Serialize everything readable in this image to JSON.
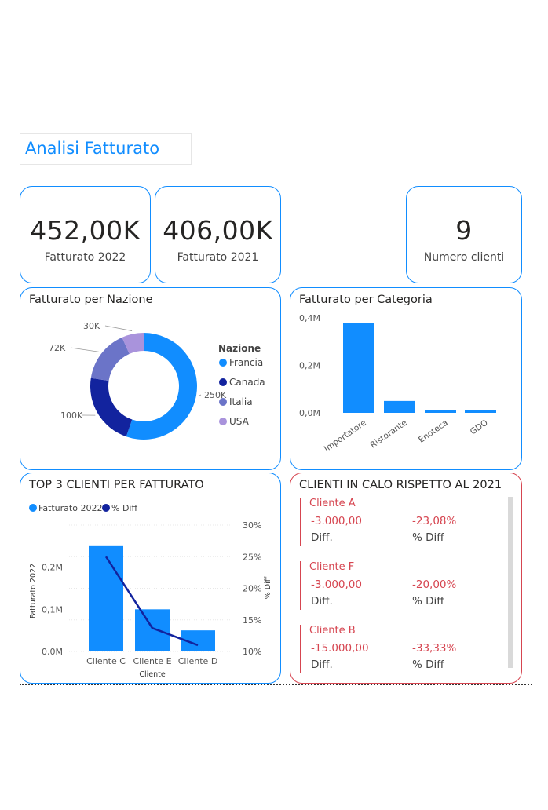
{
  "report": {
    "title": "Analisi Fatturato"
  },
  "kpis": [
    {
      "value": "452,00K",
      "label": "Fatturato 2022"
    },
    {
      "value": "406,00K",
      "label": "Fatturato 2021"
    },
    {
      "value": "9",
      "label": "Numero clienti"
    }
  ],
  "donut": {
    "title": "Fatturato per Nazione",
    "legend_title": "Nazione",
    "chart_data": {
      "type": "pie",
      "categories": [
        "Francia",
        "Canada",
        "Italia",
        "USA"
      ],
      "values": [
        250,
        100,
        72,
        30
      ],
      "data_labels": [
        "250K",
        "100K",
        "72K",
        "30K"
      ],
      "colors": [
        "#118dff",
        "#12239e",
        "#6b74c8",
        "#a993dc"
      ],
      "legend_position": "right"
    }
  },
  "category_chart": {
    "title": "Fatturato per Categoria",
    "chart_data": {
      "type": "bar",
      "categories": [
        "Importatore",
        "Ristorante",
        "Enoteca",
        "GDO"
      ],
      "values": [
        0.38,
        0.05,
        0.012,
        0.01
      ],
      "y_ticks": [
        "0,0M",
        "0,2M",
        "0,4M"
      ],
      "ylim": [
        0,
        0.4
      ],
      "color": "#118dff"
    }
  },
  "top3": {
    "title": "TOP 3 CLIENTI PER FATTURATO",
    "chart_data": {
      "type": "bar",
      "categories": [
        "Cliente C",
        "Cliente E",
        "Cliente D"
      ],
      "series": [
        {
          "name": "Fatturato 2022",
          "values": [
            0.25,
            0.1,
            0.05
          ],
          "color": "#118dff"
        },
        {
          "name": "% Diff",
          "values": [
            25,
            13.7,
            11
          ],
          "color": "#12239e",
          "type": "line"
        }
      ],
      "xlabel": "Cliente",
      "ylabel": "Fatturato 2022",
      "y2label": "% Diff",
      "y_ticks": [
        "0,0M",
        "0,1M",
        "0,2M"
      ],
      "y2_ticks": [
        "10%",
        "15%",
        "20%",
        "25%",
        "30%"
      ],
      "ylim": [
        0,
        0.3
      ],
      "y2lim": [
        10,
        30
      ]
    }
  },
  "calo": {
    "title": "CLIENTI IN CALO RISPETTO AL 2021",
    "diff_label": "Diff.",
    "pct_label": "% Diff",
    "clients": [
      {
        "name": "Cliente A",
        "diff": "-3.000,00",
        "pct": "-23,08%"
      },
      {
        "name": "Cliente F",
        "diff": "-3.000,00",
        "pct": "-20,00%"
      },
      {
        "name": "Cliente B",
        "diff": "-15.000,00",
        "pct": "-33,33%"
      }
    ]
  }
}
